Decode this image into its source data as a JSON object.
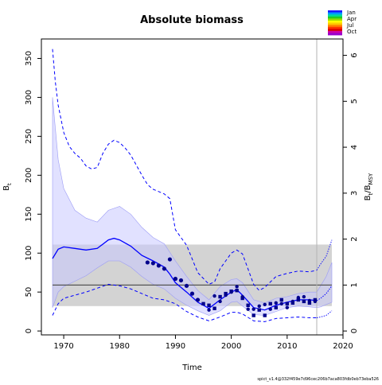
{
  "chart_data": {
    "type": "line",
    "title": "Absolute biomass",
    "xlabel": "Time",
    "ylabel": "B",
    "ylabel_sub": "t",
    "y2label": "B",
    "y2label_sub": "t",
    "y2label_mid": "/B",
    "y2label_sub2": "MSY",
    "xlim": [
      1966,
      2020
    ],
    "ylim": [
      -5,
      375
    ],
    "y2lim": [
      -0.0847,
      6.356
    ],
    "x_ticks": [
      1970,
      1980,
      1990,
      2000,
      2010,
      2020
    ],
    "y_ticks": [
      0,
      50,
      100,
      150,
      200,
      250,
      300,
      350
    ],
    "y2_ticks": [
      0,
      1,
      2,
      3,
      4,
      5,
      6
    ],
    "grid": false,
    "legend_placement": "top-right",
    "legend_labels": [
      "Jan",
      "Apr",
      "Jul",
      "Oct"
    ],
    "footer_text": "spict_v1.4@332f459e7d96cec206b7aca803fdb0eb73eba526",
    "colors": {
      "estimate": "#0000ff",
      "ci_band": "#c8c8ff",
      "bmsy_band": "#d3d3d3",
      "bmsy_line": "#555555",
      "points": "#00008b",
      "vline": "#b4b4b4"
    },
    "bmsy": 59,
    "bmsy_ci": [
      32,
      111
    ],
    "last_obs_year": 2015.3,
    "estimate": {
      "x": [
        1968,
        1969,
        1970,
        1972,
        1974,
        1976,
        1978,
        1979,
        1980,
        1982,
        1984,
        1986,
        1988,
        1989,
        1990,
        1992,
        1994,
        1996,
        1998,
        2000,
        2001,
        2002,
        2004,
        2006,
        2008,
        2010,
        2012,
        2014,
        2015.3
      ],
      "y": [
        93,
        105,
        108,
        106,
        104,
        106,
        117,
        119,
        117,
        109,
        97,
        90,
        82,
        73,
        62,
        50,
        37,
        29,
        40,
        50,
        53,
        46,
        30,
        27,
        33,
        37,
        40,
        40,
        39
      ]
    },
    "estimate_lower": {
      "x": [
        1968,
        1969,
        1970,
        1972,
        1974,
        1976,
        1978,
        1980,
        1982,
        1984,
        1986,
        1988,
        1990,
        1992,
        1994,
        1996,
        1998,
        2000,
        2001,
        2002,
        2004,
        2006,
        2008,
        2010,
        2012,
        2014,
        2015.3
      ],
      "y": [
        30,
        50,
        57,
        64,
        71,
        81,
        90,
        90,
        82,
        70,
        60,
        54,
        42,
        33,
        26,
        20,
        26,
        37,
        38,
        32,
        21,
        20,
        25,
        30,
        32,
        31,
        30
      ]
    },
    "estimate_upper": {
      "x": [
        1968,
        1969,
        1970,
        1972,
        1974,
        1976,
        1978,
        1980,
        1982,
        1984,
        1986,
        1988,
        1990,
        1992,
        1994,
        1996,
        1998,
        2000,
        2001,
        2002,
        2004,
        2006,
        2008,
        2010,
        2012,
        2014,
        2015.3
      ],
      "y": [
        300,
        220,
        183,
        155,
        145,
        140,
        155,
        160,
        150,
        133,
        120,
        112,
        90,
        70,
        52,
        40,
        57,
        66,
        67,
        62,
        40,
        36,
        42,
        44,
        48,
        50,
        50
      ]
    },
    "forecast": {
      "x": [
        2015.3,
        2016,
        2017,
        2018
      ],
      "y": [
        39,
        42,
        48,
        58
      ]
    },
    "forecast_band_upper": {
      "x": [
        2015.3,
        2016,
        2017,
        2018
      ],
      "y": [
        50,
        58,
        70,
        88
      ]
    },
    "forecast_band_lower": {
      "x": [
        2015.3,
        2016,
        2017,
        2018
      ],
      "y": [
        30,
        31,
        34,
        37
      ]
    },
    "outer_upper": {
      "x": [
        1968,
        1968.5,
        1969,
        1970,
        1971,
        1972,
        1973,
        1974,
        1975,
        1976,
        1977,
        1978,
        1979,
        1980,
        1981,
        1982,
        1984,
        1985,
        1986,
        1988,
        1989,
        1990,
        1992,
        1994,
        1996,
        1997,
        1998,
        2000,
        2001,
        2002,
        2004,
        2005,
        2006,
        2008,
        2010,
        2012,
        2014,
        2015.3
      ],
      "y": [
        362,
        320,
        290,
        255,
        237,
        228,
        222,
        212,
        208,
        210,
        228,
        240,
        245,
        242,
        235,
        226,
        200,
        188,
        182,
        176,
        170,
        130,
        110,
        75,
        60,
        63,
        80,
        100,
        104,
        99,
        60,
        52,
        56,
        70,
        74,
        77,
        76,
        78
      ]
    },
    "outer_lower": {
      "x": [
        1968,
        1969,
        1970,
        1972,
        1974,
        1976,
        1978,
        1980,
        1982,
        1984,
        1986,
        1988,
        1990,
        1992,
        1994,
        1996,
        1998,
        2000,
        2001,
        2002,
        2004,
        2006,
        2008,
        2010,
        2012,
        2014,
        2015.3
      ],
      "y": [
        20,
        35,
        42,
        46,
        50,
        55,
        60,
        58,
        54,
        48,
        42,
        40,
        35,
        25,
        18,
        13,
        18,
        24,
        24,
        22,
        13,
        12,
        16,
        17,
        18,
        17,
        17
      ]
    },
    "forecast_outer_upper": {
      "x": [
        2015.3,
        2016,
        2017,
        2018
      ],
      "y": [
        78,
        86,
        96,
        117
      ]
    },
    "forecast_outer_lower": {
      "x": [
        2015.3,
        2016,
        2017,
        2018
      ],
      "y": [
        17,
        18,
        20,
        26
      ]
    },
    "index1": {
      "x": [
        1985,
        1986,
        1987,
        1988,
        1989,
        1990,
        1991,
        1992,
        1993,
        1994
      ],
      "y": [
        88,
        87,
        84,
        80,
        92,
        67,
        65,
        58,
        48,
        40
      ]
    },
    "index2": {
      "x": [
        1995,
        1996,
        1997,
        1998,
        1999,
        2000,
        2001,
        2002,
        2003,
        2004,
        2005,
        2006,
        2007,
        2008,
        2009,
        2010,
        2011,
        2012,
        2013,
        2014,
        2015
      ],
      "y": [
        35,
        33,
        29,
        44,
        48,
        51,
        52,
        42,
        33,
        20,
        27,
        20,
        35,
        30,
        40,
        35,
        36,
        40,
        38,
        36,
        40
      ]
    },
    "index2_extra": {
      "x": [
        1996,
        1997,
        1998,
        1999,
        2000,
        2001,
        2002,
        2003,
        2004,
        2005,
        2006,
        2007,
        2008,
        2009,
        2010,
        2011,
        2012,
        2013,
        2014,
        2015
      ],
      "y": [
        27,
        45,
        38,
        46,
        50,
        57,
        44,
        28,
        28,
        32,
        34,
        28,
        36,
        35,
        30,
        38,
        43,
        44,
        39,
        38
      ]
    }
  }
}
